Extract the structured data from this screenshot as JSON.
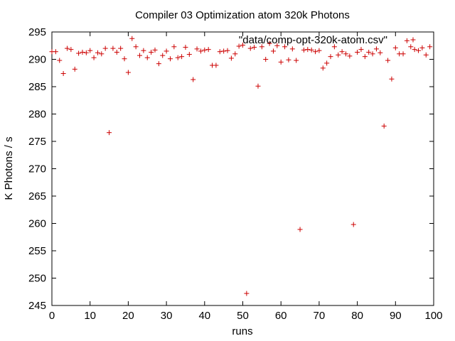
{
  "chart_data": {
    "type": "scatter",
    "title": "Compiler 03 Optimization atom 320k Photons",
    "xlabel": "runs",
    "ylabel": "K Photons / s",
    "xlim": [
      0,
      100
    ],
    "ylim": [
      245,
      295
    ],
    "x_ticks": [
      0,
      10,
      20,
      30,
      40,
      50,
      60,
      70,
      80,
      90,
      100
    ],
    "y_ticks": [
      245,
      250,
      255,
      260,
      265,
      270,
      275,
      280,
      285,
      290,
      295
    ],
    "grid": false,
    "legend_position": "top-right",
    "series": [
      {
        "name": "\"data/comp-opt-320k-atom.csv\"",
        "color": "#cc0000",
        "marker": "plus",
        "x": [
          0,
          1,
          2,
          3,
          4,
          5,
          6,
          7,
          8,
          9,
          10,
          11,
          12,
          13,
          14,
          15,
          16,
          17,
          18,
          19,
          20,
          21,
          22,
          23,
          24,
          25,
          26,
          27,
          28,
          29,
          30,
          31,
          32,
          33,
          34,
          35,
          36,
          37,
          38,
          39,
          40,
          41,
          42,
          43,
          44,
          45,
          46,
          47,
          48,
          49,
          50,
          51,
          52,
          53,
          54,
          55,
          56,
          57,
          58,
          59,
          60,
          61,
          62,
          63,
          64,
          65,
          66,
          67,
          68,
          69,
          70,
          71,
          72,
          73,
          74,
          75,
          76,
          77,
          78,
          79,
          80,
          81,
          82,
          83,
          84,
          85,
          86,
          87,
          88,
          89,
          90,
          91,
          92,
          93,
          94,
          95,
          96,
          97,
          98,
          99
        ],
        "y": [
          291.4,
          291.4,
          289.8,
          287.4,
          292.0,
          291.8,
          288.2,
          291.1,
          291.3,
          291.2,
          291.6,
          290.3,
          291.2,
          291.0,
          292.0,
          276.6,
          292.0,
          291.3,
          292.0,
          290.1,
          287.6,
          293.8,
          292.3,
          290.7,
          291.6,
          290.3,
          291.3,
          291.7,
          289.2,
          290.7,
          291.5,
          290.1,
          292.3,
          290.3,
          290.5,
          292.2,
          290.9,
          286.3,
          291.9,
          291.5,
          291.7,
          291.8,
          288.9,
          288.9,
          291.4,
          291.5,
          291.6,
          290.2,
          291.0,
          292.4,
          292.6,
          247.2,
          292.0,
          292.2,
          285.1,
          292.3,
          290.0,
          292.9,
          291.5,
          292.5,
          289.5,
          292.3,
          289.9,
          291.9,
          289.8,
          258.9,
          291.7,
          291.8,
          291.7,
          291.4,
          291.6,
          288.4,
          289.3,
          290.5,
          292.3,
          290.8,
          291.4,
          291.0,
          290.6,
          259.8,
          291.3,
          291.8,
          290.5,
          291.3,
          291.0,
          291.9,
          291.2,
          277.8,
          289.8,
          286.4,
          292.1,
          291.0,
          291.0,
          293.4,
          292.3,
          291.8,
          291.6,
          292.1,
          290.8,
          292.3
        ]
      }
    ]
  }
}
